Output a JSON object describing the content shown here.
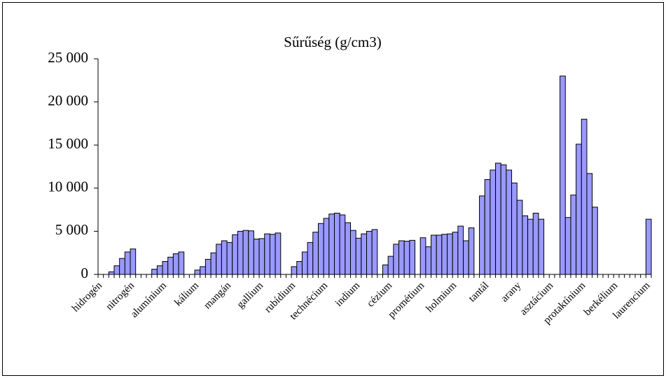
{
  "chart_data": {
    "type": "bar",
    "title": "Sűrűség (g/cm3)",
    "categories": [
      "hidrogén",
      null,
      null,
      null,
      null,
      null,
      "nitrogén",
      null,
      null,
      null,
      null,
      null,
      "alumínium",
      null,
      null,
      null,
      null,
      null,
      "kálium",
      null,
      null,
      null,
      null,
      null,
      "mangán",
      null,
      null,
      null,
      null,
      null,
      "gallium",
      null,
      null,
      null,
      null,
      null,
      "rubídium",
      null,
      null,
      null,
      null,
      null,
      "technécium",
      null,
      null,
      null,
      null,
      null,
      "indium",
      null,
      null,
      null,
      null,
      null,
      "cézium",
      null,
      null,
      null,
      null,
      null,
      "prométium",
      null,
      null,
      null,
      null,
      null,
      "holmium",
      null,
      null,
      null,
      null,
      null,
      "tantál",
      null,
      null,
      null,
      null,
      null,
      "arany",
      null,
      null,
      null,
      null,
      null,
      "asztácium",
      null,
      null,
      null,
      null,
      null,
      "protaktínium",
      null,
      null,
      null,
      null,
      null,
      "berkélium",
      null,
      null,
      null,
      null,
      null,
      "laurencium"
    ],
    "values": [
      null,
      null,
      300,
      1000,
      1850,
      2600,
      2950,
      null,
      null,
      null,
      600,
      1000,
      1500,
      2000,
      2400,
      2600,
      null,
      null,
      500,
      900,
      1750,
      2500,
      3500,
      3900,
      3700,
      4600,
      5000,
      5100,
      5050,
      4100,
      4150,
      4700,
      4650,
      4800,
      null,
      null,
      900,
      1500,
      2600,
      3700,
      4900,
      5900,
      6500,
      7000,
      7100,
      6900,
      6000,
      5100,
      4200,
      4700,
      5000,
      5200,
      null,
      1100,
      2100,
      3500,
      3900,
      3850,
      3950,
      null,
      4250,
      3200,
      4550,
      4550,
      4650,
      4700,
      4900,
      5600,
      3900,
      5400,
      null,
      9100,
      11000,
      12100,
      12900,
      12700,
      12100,
      10600,
      8600,
      6800,
      6400,
      7100,
      6400,
      null,
      null,
      null,
      23000,
      6600,
      9200,
      15100,
      18000,
      11700,
      7800,
      null,
      null,
      null,
      null,
      null,
      null,
      null,
      null,
      null,
      6400
    ],
    "color": "#9999ff",
    "ylim": [
      0,
      25000
    ],
    "yticks": [
      0,
      {
        "value": 5000,
        "label": "5 000"
      },
      {
        "value": 10000,
        "label": "10 000"
      },
      {
        "value": 15000,
        "label": "15 000"
      },
      {
        "value": 20000,
        "label": "20 000"
      },
      {
        "value": 25000,
        "label": "25 000"
      }
    ],
    "grid": false
  }
}
